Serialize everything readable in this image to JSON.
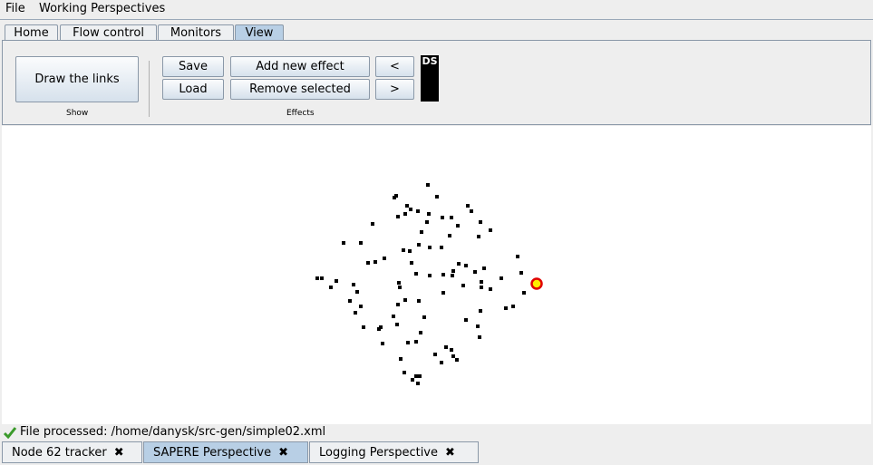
{
  "menu": {
    "items": [
      "File",
      "Working Perspectives"
    ]
  },
  "tabs": [
    "Home",
    "Flow control",
    "Monitors",
    "View"
  ],
  "ribbon": {
    "show_group": {
      "button": "Draw the links",
      "label": "Show"
    },
    "effects_group": {
      "buttons": [
        "Save",
        "Load",
        "Add new effect",
        "Remove selected",
        "<",
        ">"
      ],
      "label": "Effects"
    },
    "ds_box": "DS"
  },
  "status": {
    "text": "File processed: /home/danysk/src-gen/simple02.xml"
  },
  "bottom_tabs": [
    "Node 62 tracker",
    "SAPERE Perspective",
    "Logging Perspective"
  ]
}
